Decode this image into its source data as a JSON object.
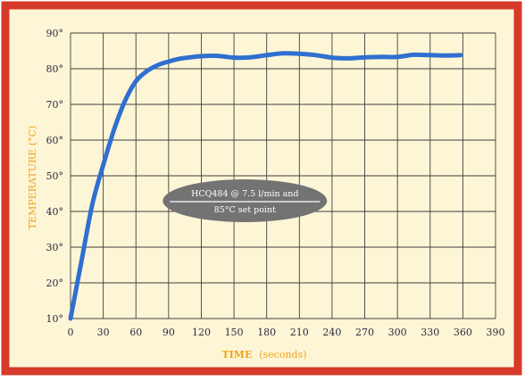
{
  "colors": {
    "frame": "#d63a2a",
    "panel": "#fdf6d6",
    "grid": "#3f3f3f",
    "series": "#2f6fd0",
    "tick_label": "#2a2a40",
    "axis_title": "#f2a21b",
    "badge_fill": "#737373",
    "badge_text": "#ffffff"
  },
  "chart_data": {
    "type": "line",
    "xlabel": "TIME",
    "xlabel_unit": "(seconds)",
    "ylabel": "TEMPERATURE (°C)",
    "xlim": [
      0,
      390
    ],
    "ylim": [
      10,
      90
    ],
    "x_ticks": [
      0,
      30,
      60,
      90,
      120,
      150,
      180,
      210,
      240,
      270,
      300,
      330,
      360,
      390
    ],
    "x_tick_labels": [
      "0",
      "30",
      "60",
      "90",
      "120",
      "150",
      "180",
      "210",
      "240",
      "270",
      "300",
      "330",
      "360",
      "390"
    ],
    "y_ticks": [
      10,
      20,
      30,
      40,
      50,
      60,
      70,
      80,
      90
    ],
    "y_tick_labels": [
      "10°",
      "20°",
      "30°",
      "40°",
      "50°",
      "60°",
      "70°",
      "80°",
      "90°"
    ],
    "grid": true,
    "annotation": {
      "line1": "HCQ484 @ 7.5 l/min and",
      "line2": "85°C set point",
      "x": 160,
      "y": 43
    },
    "series": [
      {
        "x": [
          0,
          10,
          20,
          30,
          40,
          50,
          60,
          70,
          80,
          90,
          100,
          110,
          120,
          135,
          150,
          165,
          180,
          195,
          210,
          225,
          240,
          255,
          270,
          285,
          300,
          315,
          330,
          345,
          358
        ],
        "values": [
          10,
          26,
          42,
          53,
          63,
          71,
          76.5,
          79.3,
          81,
          82,
          82.8,
          83.2,
          83.5,
          83.6,
          83.1,
          83.2,
          83.8,
          84.3,
          84.2,
          83.8,
          83.1,
          82.9,
          83.2,
          83.3,
          83.3,
          83.9,
          83.8,
          83.7,
          83.8
        ]
      }
    ]
  }
}
